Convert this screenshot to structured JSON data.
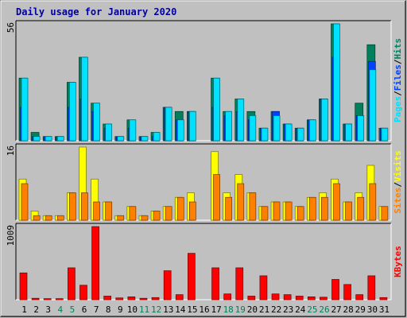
{
  "title": "Daily usage for January 2020",
  "colors": {
    "title": "#0000a0",
    "hits": "#00805c",
    "files": "#0040ff",
    "pages": "#00e0ff",
    "visits": "#ffff00",
    "sites": "#ff8000",
    "kbytes": "#ff0000",
    "weekday": "#000000",
    "weekend": "#00805c",
    "frame_dark": "#808080",
    "frame_light": "#ffffff",
    "plot_bg": "#c0c0c0"
  },
  "chart_data": [
    {
      "type": "bar",
      "name": "hits-files-pages",
      "categories": [
        "1",
        "2",
        "3",
        "4",
        "5",
        "6",
        "7",
        "8",
        "9",
        "10",
        "11",
        "12",
        "13",
        "14",
        "15",
        "16",
        "17",
        "18",
        "19",
        "20",
        "21",
        "22",
        "23",
        "24",
        "25",
        "26",
        "27",
        "28",
        "29",
        "30",
        "31"
      ],
      "weekend_days": [
        4,
        5,
        11,
        12,
        18,
        19,
        25,
        26
      ],
      "ymax_label": "56",
      "ylim": [
        0,
        56
      ],
      "series": [
        {
          "name": "Hits",
          "key": "hits",
          "values": [
            30,
            4,
            2,
            2,
            28,
            40,
            18,
            8,
            2,
            10,
            2,
            4,
            16,
            14,
            14,
            0,
            30,
            14,
            20,
            14,
            6,
            14,
            8,
            6,
            10,
            20,
            56,
            8,
            18,
            46,
            6
          ]
        },
        {
          "name": "Files",
          "key": "files",
          "values": [
            16,
            2,
            2,
            2,
            16,
            20,
            14,
            6,
            2,
            6,
            2,
            2,
            16,
            10,
            14,
            0,
            16,
            12,
            14,
            10,
            6,
            14,
            8,
            6,
            10,
            20,
            40,
            8,
            12,
            38,
            6
          ]
        },
        {
          "name": "Pages",
          "key": "pages",
          "values": [
            30,
            2,
            2,
            2,
            28,
            40,
            18,
            8,
            2,
            10,
            2,
            4,
            16,
            10,
            14,
            0,
            30,
            14,
            20,
            12,
            6,
            12,
            8,
            6,
            10,
            20,
            56,
            8,
            12,
            34,
            6
          ]
        }
      ],
      "legend": [
        "Pages",
        "Files",
        "Hits"
      ]
    },
    {
      "type": "bar",
      "name": "visits-sites",
      "categories": [
        "1",
        "2",
        "3",
        "4",
        "5",
        "6",
        "7",
        "8",
        "9",
        "10",
        "11",
        "12",
        "13",
        "14",
        "15",
        "16",
        "17",
        "18",
        "19",
        "20",
        "21",
        "22",
        "23",
        "24",
        "25",
        "26",
        "27",
        "28",
        "29",
        "30",
        "31"
      ],
      "ymax_label": "16",
      "ylim": [
        0,
        16
      ],
      "series": [
        {
          "name": "Visits",
          "key": "visits",
          "values": [
            9,
            2,
            1,
            1,
            6,
            16,
            9,
            4,
            1,
            3,
            1,
            2,
            3,
            5,
            6,
            0,
            15,
            6,
            10,
            6,
            3,
            4,
            4,
            3,
            5,
            6,
            9,
            4,
            6,
            12,
            3
          ]
        },
        {
          "name": "Sites",
          "key": "sites",
          "values": [
            8,
            1,
            1,
            1,
            6,
            6,
            4,
            4,
            1,
            3,
            1,
            2,
            3,
            5,
            4,
            0,
            10,
            5,
            8,
            6,
            3,
            4,
            4,
            3,
            5,
            5,
            8,
            4,
            5,
            8,
            3
          ]
        }
      ],
      "legend": [
        "Sites",
        "Visits"
      ]
    },
    {
      "type": "bar",
      "name": "kbytes",
      "categories": [
        "1",
        "2",
        "3",
        "4",
        "5",
        "6",
        "7",
        "8",
        "9",
        "10",
        "11",
        "12",
        "13",
        "14",
        "15",
        "16",
        "17",
        "18",
        "19",
        "20",
        "21",
        "22",
        "23",
        "24",
        "25",
        "26",
        "27",
        "28",
        "29",
        "30",
        "31"
      ],
      "ymax_label": "1009",
      "ylim": [
        0,
        1009
      ],
      "series": [
        {
          "name": "KBytes",
          "key": "kbytes",
          "values": [
            370,
            20,
            15,
            15,
            440,
            200,
            1009,
            50,
            25,
            40,
            20,
            30,
            400,
            70,
            640,
            0,
            440,
            80,
            440,
            50,
            330,
            80,
            70,
            50,
            40,
            35,
            280,
            210,
            70,
            330,
            30
          ]
        }
      ],
      "legend": [
        "KBytes"
      ]
    }
  ]
}
